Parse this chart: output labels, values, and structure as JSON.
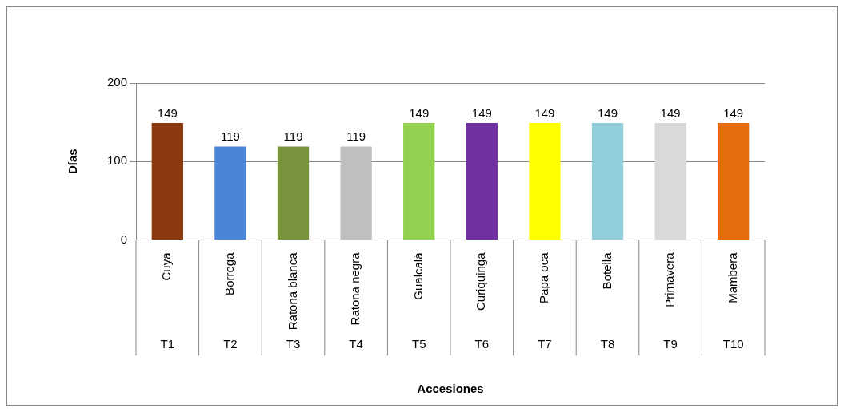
{
  "chart_data": {
    "type": "bar",
    "xlabel": "Accesiones",
    "ylabel": "Días",
    "categories": [
      "Cuya",
      "Borrega",
      "Ratona blanca",
      "Ratona negra",
      "Gualcalá",
      "Curiquinga",
      "Papa oca",
      "Botella",
      "Primavera",
      "Mambera"
    ],
    "values": [
      149,
      119,
      119,
      119,
      149,
      149,
      149,
      149,
      149,
      149
    ],
    "colors": [
      "#8b3a0f",
      "#4a86d8",
      "#77933c",
      "#bfbfbf",
      "#92d050",
      "#7030a0",
      "#ffff00",
      "#92cddc",
      "#d9d9d9",
      "#e46c0a"
    ],
    "ylim": [
      0,
      200
    ],
    "yticks": [
      0,
      100,
      200
    ],
    "grid": "y",
    "data_labels": true,
    "legend": false,
    "annotations": [
      "T1",
      "T2",
      "T3",
      "T4",
      "T5",
      "T6",
      "T7",
      "T8",
      "T9",
      "T10"
    ]
  }
}
